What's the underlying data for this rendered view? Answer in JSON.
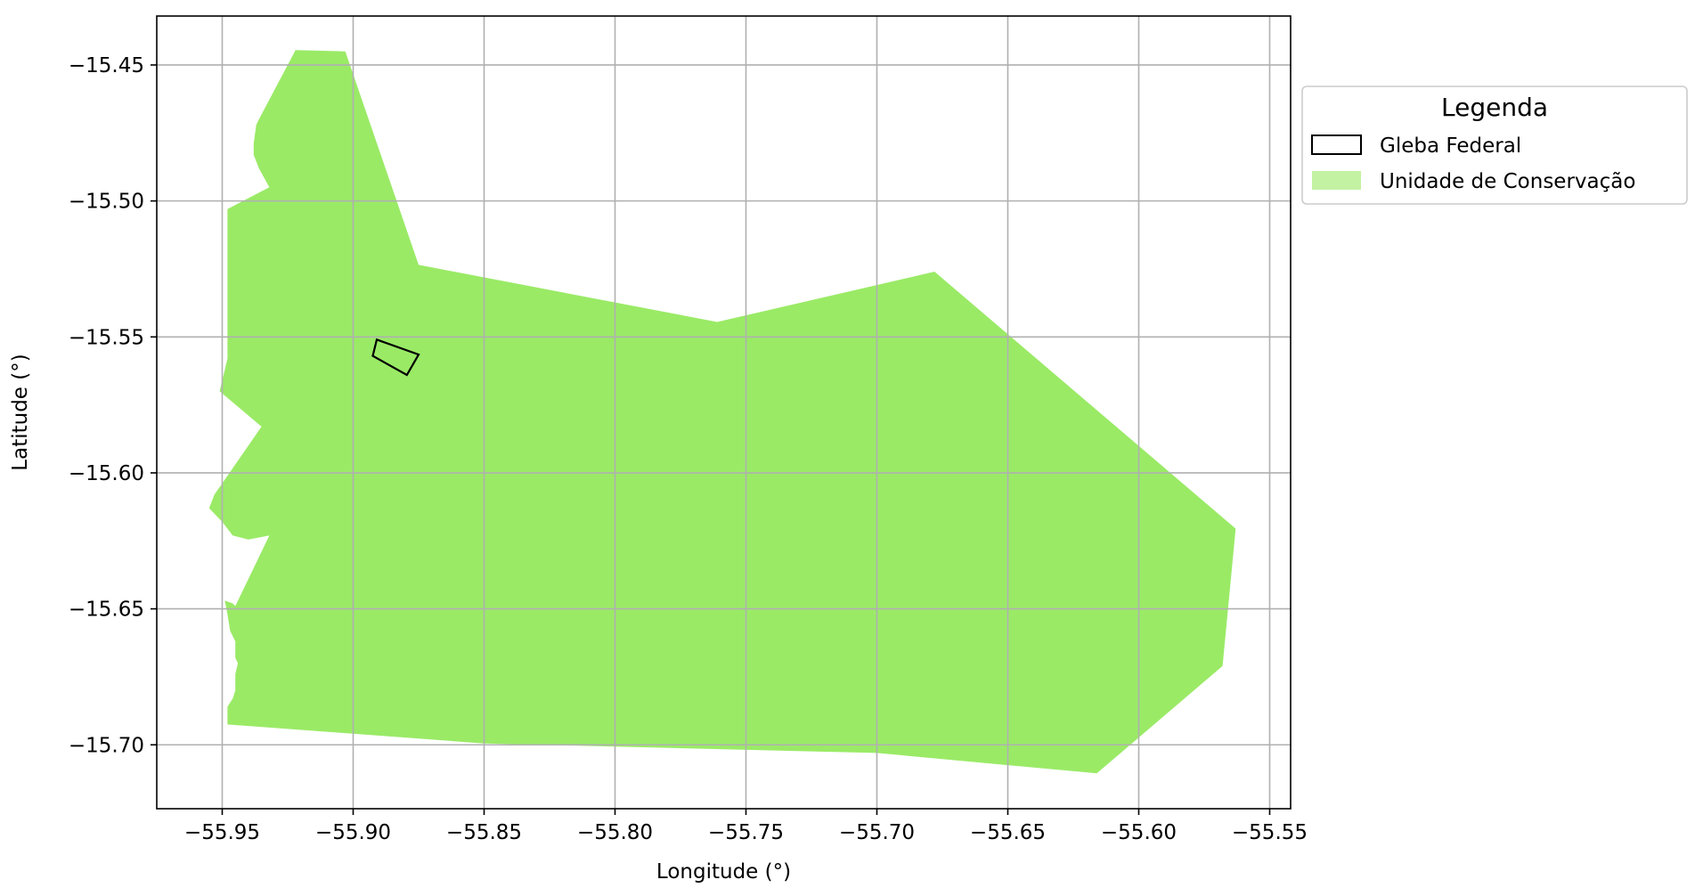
{
  "chart_data": {
    "type": "map",
    "xlabel": "Longitude (°)",
    "ylabel": "Latitude (°)",
    "xlim": [
      -55.975,
      -55.542
    ],
    "ylim": [
      -15.7235,
      -15.432
    ],
    "xticks": [
      -55.95,
      -55.9,
      -55.85,
      -55.8,
      -55.75,
      -55.7,
      -55.65,
      -55.6,
      -55.55
    ],
    "xtick_labels": [
      "−55.95",
      "−55.90",
      "−55.85",
      "−55.80",
      "−55.75",
      "−55.70",
      "−55.65",
      "−55.60",
      "−55.55"
    ],
    "yticks": [
      -15.45,
      -15.5,
      -15.55,
      -15.6,
      -15.65,
      -15.7
    ],
    "ytick_labels": [
      "−15.45",
      "−15.50",
      "−15.55",
      "−15.60",
      "−15.65",
      "−15.70"
    ],
    "grid": true,
    "legend": {
      "title": "Legenda",
      "placement": "outside upper right",
      "entries": [
        {
          "label": "Gleba Federal",
          "style": "outline"
        },
        {
          "label": "Unidade de Conservação",
          "style": "fill"
        }
      ]
    },
    "layers": [
      {
        "name": "Unidade de Conservação",
        "fill": "#9aea66",
        "coords": [
          [
            -55.922,
            -15.4445
          ],
          [
            -55.903,
            -15.445
          ],
          [
            -55.875,
            -15.5235
          ],
          [
            -55.761,
            -15.5445
          ],
          [
            -55.678,
            -15.526
          ],
          [
            -55.563,
            -15.6205
          ],
          [
            -55.568,
            -15.671
          ],
          [
            -55.616,
            -15.7105
          ],
          [
            -55.7,
            -15.703
          ],
          [
            -55.85,
            -15.6995
          ],
          [
            -55.948,
            -15.6925
          ],
          [
            -55.948,
            -15.686
          ],
          [
            -55.946,
            -15.683
          ],
          [
            -55.945,
            -15.68
          ],
          [
            -55.945,
            -15.674
          ],
          [
            -55.944,
            -15.67
          ],
          [
            -55.945,
            -15.668
          ],
          [
            -55.945,
            -15.662
          ],
          [
            -55.947,
            -15.658
          ],
          [
            -55.948,
            -15.652
          ],
          [
            -55.949,
            -15.647
          ],
          [
            -55.946,
            -15.648
          ],
          [
            -55.945,
            -15.649
          ],
          [
            -55.932,
            -15.623
          ],
          [
            -55.94,
            -15.6245
          ],
          [
            -55.946,
            -15.623
          ],
          [
            -55.95,
            -15.618
          ],
          [
            -55.955,
            -15.613
          ],
          [
            -55.953,
            -15.608
          ],
          [
            -55.935,
            -15.583
          ],
          [
            -55.951,
            -15.57
          ],
          [
            -55.948,
            -15.558
          ],
          [
            -55.948,
            -15.503
          ],
          [
            -55.932,
            -15.495
          ],
          [
            -55.936,
            -15.488
          ],
          [
            -55.938,
            -15.483
          ],
          [
            -55.938,
            -15.479
          ],
          [
            -55.937,
            -15.472
          ],
          [
            -55.936,
            -15.47
          ]
        ]
      },
      {
        "name": "Gleba Federal",
        "stroke": "#000000",
        "fill": "none",
        "coords": [
          [
            -55.891,
            -15.551
          ],
          [
            -55.875,
            -15.5565
          ],
          [
            -55.8795,
            -15.564
          ],
          [
            -55.8925,
            -15.557
          ]
        ]
      }
    ]
  }
}
